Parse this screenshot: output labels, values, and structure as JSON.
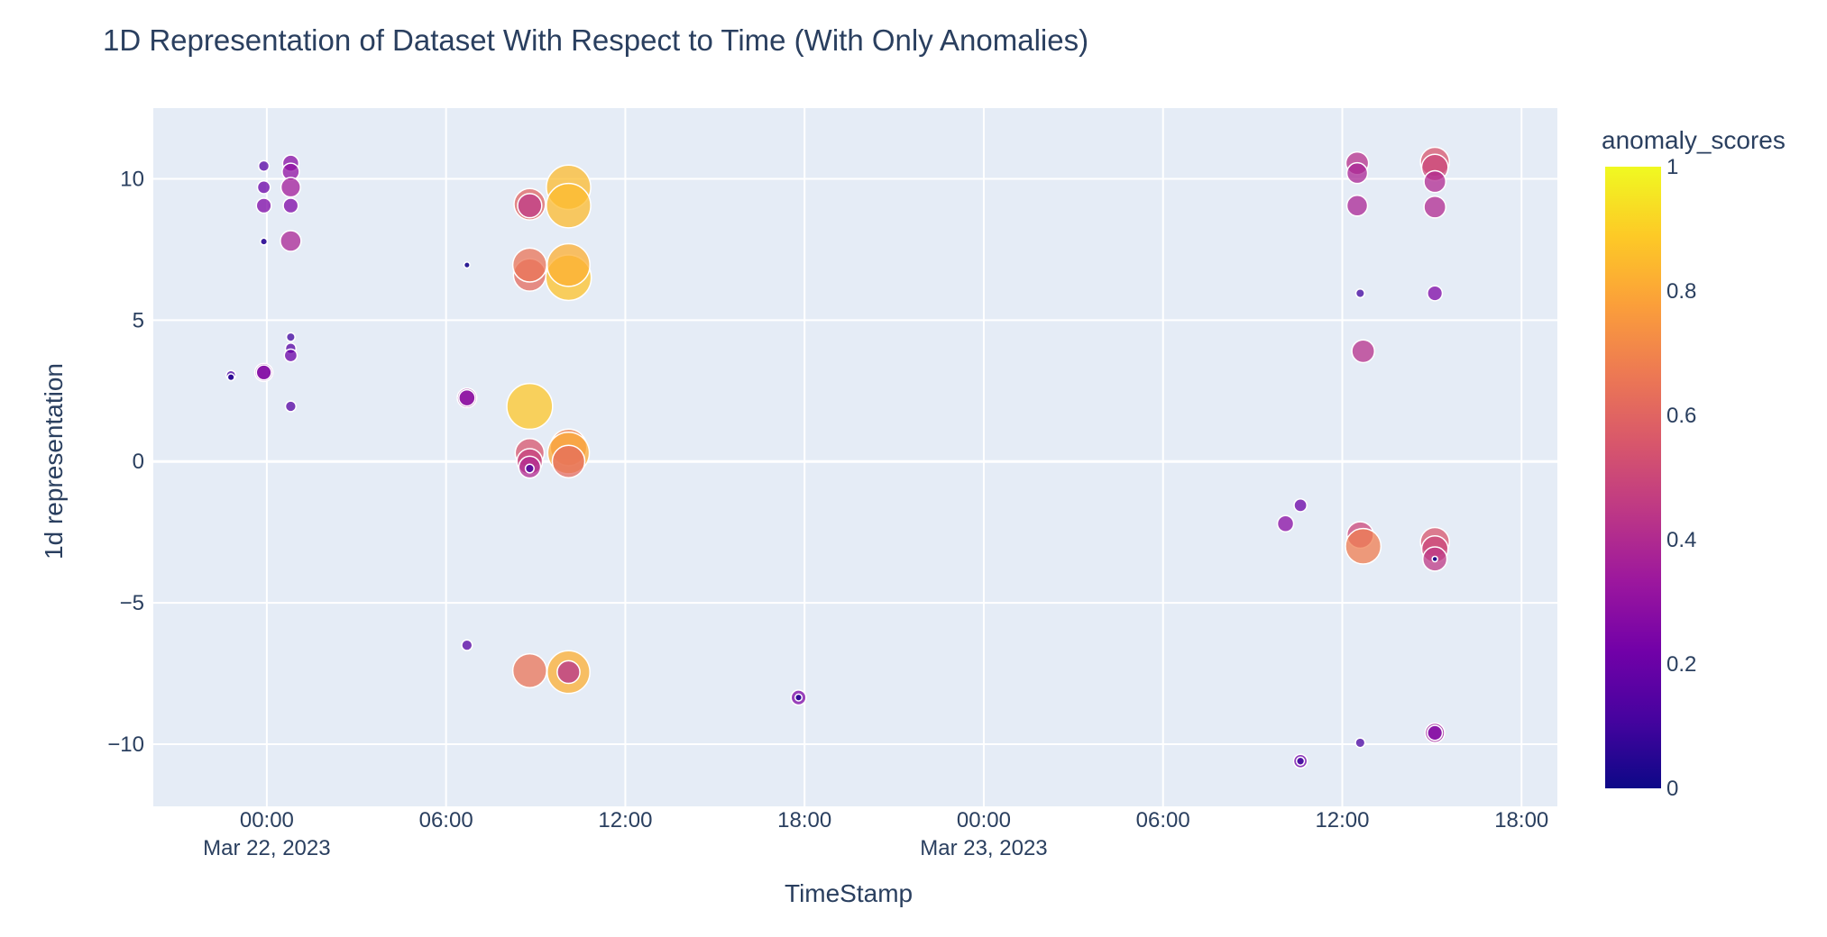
{
  "chart_data": {
    "type": "scatter",
    "title": "1D Representation of Dataset With Respect to Time (With Only Anomalies)",
    "xlabel": "TimeStamp",
    "ylabel": "1d representation",
    "x_unit": "hours since Mar 22, 2023 00:00",
    "xlim": [
      -3.8,
      43.2
    ],
    "ylim": [
      -12.2,
      12.5
    ],
    "x_ticks": [
      {
        "value": 0,
        "label": "00:00",
        "sublabel": "Mar 22, 2023"
      },
      {
        "value": 6,
        "label": "06:00"
      },
      {
        "value": 12,
        "label": "12:00"
      },
      {
        "value": 18,
        "label": "18:00"
      },
      {
        "value": 24,
        "label": "00:00",
        "sublabel": "Mar 23, 2023"
      },
      {
        "value": 30,
        "label": "06:00"
      },
      {
        "value": 36,
        "label": "12:00"
      },
      {
        "value": 42,
        "label": "18:00"
      }
    ],
    "y_ticks": [
      {
        "value": 10,
        "label": "10"
      },
      {
        "value": 5,
        "label": "5"
      },
      {
        "value": 0,
        "label": "0"
      },
      {
        "value": -5,
        "label": "−5"
      },
      {
        "value": -10,
        "label": "−10"
      }
    ],
    "grid": true,
    "color_variable": "anomaly_scores",
    "colorscale": "plasma",
    "colorbar": {
      "title": "anomaly_scores",
      "range": [
        0,
        1
      ],
      "ticks": [
        {
          "value": 0,
          "label": "0"
        },
        {
          "value": 0.2,
          "label": "0.2"
        },
        {
          "value": 0.4,
          "label": "0.4"
        },
        {
          "value": 0.6,
          "label": "0.6"
        },
        {
          "value": 0.8,
          "label": "0.8"
        },
        {
          "value": 1,
          "label": "1"
        }
      ]
    },
    "points": [
      {
        "x": -1.2,
        "y": 3.05,
        "score": 0.12
      },
      {
        "x": -1.2,
        "y": 2.98,
        "score": 0.05
      },
      {
        "x": -0.1,
        "y": 10.45,
        "score": 0.15
      },
      {
        "x": -0.1,
        "y": 9.7,
        "score": 0.2
      },
      {
        "x": -0.1,
        "y": 9.05,
        "score": 0.25
      },
      {
        "x": -0.1,
        "y": 7.78,
        "score": 0.05
      },
      {
        "x": -0.1,
        "y": 3.15,
        "score": 0.32
      },
      {
        "x": -0.1,
        "y": 3.15,
        "score": 0.25
      },
      {
        "x": 0.8,
        "y": 10.55,
        "score": 0.28
      },
      {
        "x": 0.8,
        "y": 10.25,
        "score": 0.3
      },
      {
        "x": 0.8,
        "y": 9.7,
        "score": 0.35
      },
      {
        "x": 0.8,
        "y": 9.05,
        "score": 0.25
      },
      {
        "x": 0.8,
        "y": 7.8,
        "score": 0.38
      },
      {
        "x": 0.8,
        "y": 4.4,
        "score": 0.1
      },
      {
        "x": 0.8,
        "y": 4.0,
        "score": 0.15
      },
      {
        "x": 0.8,
        "y": 3.75,
        "score": 0.2
      },
      {
        "x": 0.8,
        "y": 1.95,
        "score": 0.15
      },
      {
        "x": 6.7,
        "y": 6.95,
        "score": 0.02
      },
      {
        "x": 6.7,
        "y": 2.25,
        "score": 0.35
      },
      {
        "x": 6.7,
        "y": 2.25,
        "score": 0.28
      },
      {
        "x": 6.7,
        "y": -6.5,
        "score": 0.15
      },
      {
        "x": 8.8,
        "y": 9.1,
        "score": 0.6
      },
      {
        "x": 8.8,
        "y": 9.05,
        "score": 0.45
      },
      {
        "x": 8.8,
        "y": 6.6,
        "score": 0.62
      },
      {
        "x": 8.8,
        "y": 6.95,
        "score": 0.65
      },
      {
        "x": 8.8,
        "y": 1.95,
        "score": 0.88
      },
      {
        "x": 8.8,
        "y": 0.3,
        "score": 0.55
      },
      {
        "x": 8.8,
        "y": 0.0,
        "score": 0.48
      },
      {
        "x": 8.8,
        "y": -0.2,
        "score": 0.4
      },
      {
        "x": 8.8,
        "y": -0.25,
        "score": 0.1
      },
      {
        "x": 8.8,
        "y": -7.4,
        "score": 0.65
      },
      {
        "x": 10.1,
        "y": 9.7,
        "score": 0.85
      },
      {
        "x": 10.1,
        "y": 9.05,
        "score": 0.85
      },
      {
        "x": 10.1,
        "y": 6.5,
        "score": 0.87
      },
      {
        "x": 10.1,
        "y": 6.95,
        "score": 0.82
      },
      {
        "x": 10.1,
        "y": 0.5,
        "score": 0.7
      },
      {
        "x": 10.1,
        "y": 0.3,
        "score": 0.8
      },
      {
        "x": 10.1,
        "y": 0.0,
        "score": 0.62
      },
      {
        "x": 10.1,
        "y": -7.45,
        "score": 0.82
      },
      {
        "x": 10.1,
        "y": -7.45,
        "score": 0.42
      },
      {
        "x": 17.8,
        "y": -8.35,
        "score": 0.25
      },
      {
        "x": 17.8,
        "y": -8.35,
        "score": 0.05
      },
      {
        "x": 34.1,
        "y": -2.2,
        "score": 0.28
      },
      {
        "x": 34.6,
        "y": -1.55,
        "score": 0.2
      },
      {
        "x": 34.6,
        "y": -10.6,
        "score": 0.22
      },
      {
        "x": 34.6,
        "y": -10.6,
        "score": 0.08
      },
      {
        "x": 36.5,
        "y": 10.55,
        "score": 0.42
      },
      {
        "x": 36.5,
        "y": 10.2,
        "score": 0.38
      },
      {
        "x": 36.5,
        "y": 9.05,
        "score": 0.38
      },
      {
        "x": 36.6,
        "y": 5.95,
        "score": 0.1
      },
      {
        "x": 36.7,
        "y": 3.9,
        "score": 0.42
      },
      {
        "x": 36.6,
        "y": -2.6,
        "score": 0.5
      },
      {
        "x": 36.7,
        "y": -3.0,
        "score": 0.68
      },
      {
        "x": 36.6,
        "y": -9.95,
        "score": 0.12
      },
      {
        "x": 39.1,
        "y": 10.6,
        "score": 0.55
      },
      {
        "x": 39.1,
        "y": 10.4,
        "score": 0.5
      },
      {
        "x": 39.1,
        "y": 9.9,
        "score": 0.4
      },
      {
        "x": 39.1,
        "y": 9.0,
        "score": 0.4
      },
      {
        "x": 39.1,
        "y": 5.95,
        "score": 0.25
      },
      {
        "x": 39.1,
        "y": -2.85,
        "score": 0.55
      },
      {
        "x": 39.1,
        "y": -3.1,
        "score": 0.5
      },
      {
        "x": 39.1,
        "y": -3.45,
        "score": 0.45
      },
      {
        "x": 39.1,
        "y": -3.45,
        "score": 0.0
      },
      {
        "x": 39.1,
        "y": -9.6,
        "score": 0.35
      },
      {
        "x": 39.1,
        "y": -9.6,
        "score": 0.25
      }
    ]
  }
}
